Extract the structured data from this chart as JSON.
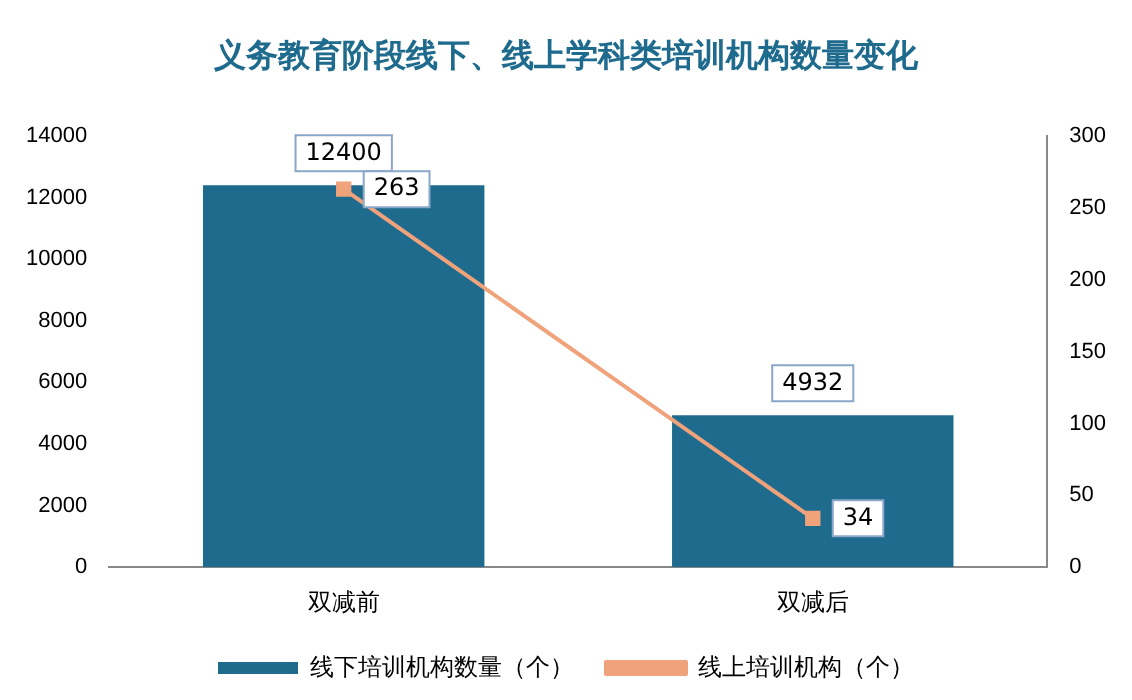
{
  "chart_data": {
    "type": "bar",
    "title": "义务教育阶段线下、线上学科类培训机构数量变化",
    "categories": [
      "双减前",
      "双减后"
    ],
    "series": [
      {
        "name": "线下培训机构数量（个）",
        "color": "#1f6b8e",
        "values": [
          12400,
          4932
        ]
      },
      {
        "name": "线上培训机构（个）",
        "type": "line",
        "axis": "y2",
        "color": "#f0a27a",
        "marker": "square",
        "values": [
          263,
          34
        ]
      }
    ],
    "ylim": [
      0,
      14000
    ],
    "yticks": [
      0,
      2000,
      4000,
      6000,
      8000,
      10000,
      12000,
      14000
    ],
    "y2lim": [
      0,
      300
    ],
    "y2ticks": [
      0,
      50,
      100,
      150,
      200,
      250,
      300
    ],
    "grid": false,
    "legend": "bottom",
    "data_labels": true
  }
}
